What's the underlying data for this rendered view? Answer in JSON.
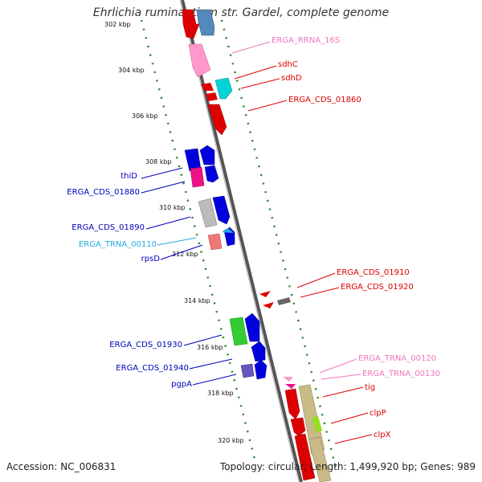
{
  "title": "Ehrlichia ruminantium str. Gardel, complete genome",
  "accession": "Accession: NC_006831",
  "summary": "Topology: circular; Length: 1,499,920 bp; Genes: 989",
  "kbp_ticks": [
    "302 kbp",
    "304 kbp",
    "306 kbp",
    "308 kbp",
    "310 kbp",
    "312 kbp",
    "314 kbp",
    "316 kbp",
    "318 kbp",
    "320 kbp"
  ],
  "gene_labels": [
    {
      "text": "ERGA_RRNA_16S",
      "color": "#ee77bb"
    },
    {
      "text": "sdhC",
      "color": "#dd0000"
    },
    {
      "text": "sdhD",
      "color": "#dd0000"
    },
    {
      "text": "ERGA_CDS_01860",
      "color": "#dd0000"
    },
    {
      "text": "thiD",
      "color": "#0000bb"
    },
    {
      "text": "ERGA_CDS_01880",
      "color": "#0000bb"
    },
    {
      "text": "ERGA_CDS_01890",
      "color": "#0000bb"
    },
    {
      "text": "ERGA_TRNA_00110",
      "color": "#22aadd"
    },
    {
      "text": "rpsD",
      "color": "#0000bb"
    },
    {
      "text": "ERGA_CDS_01910",
      "color": "#dd0000"
    },
    {
      "text": "ERGA_CDS_01920",
      "color": "#dd0000"
    },
    {
      "text": "ERGA_CDS_01930",
      "color": "#0000bb"
    },
    {
      "text": "ERGA_CDS_01940",
      "color": "#0000bb"
    },
    {
      "text": "pgpA",
      "color": "#0000bb"
    },
    {
      "text": "ERGA_TRNA_00120",
      "color": "#ee77bb"
    },
    {
      "text": "ERGA_TRNA_00130",
      "color": "#ee77bb"
    },
    {
      "text": "tig",
      "color": "#dd0000"
    },
    {
      "text": "clpP",
      "color": "#dd0000"
    },
    {
      "text": "clpX",
      "color": "#dd0000"
    }
  ]
}
